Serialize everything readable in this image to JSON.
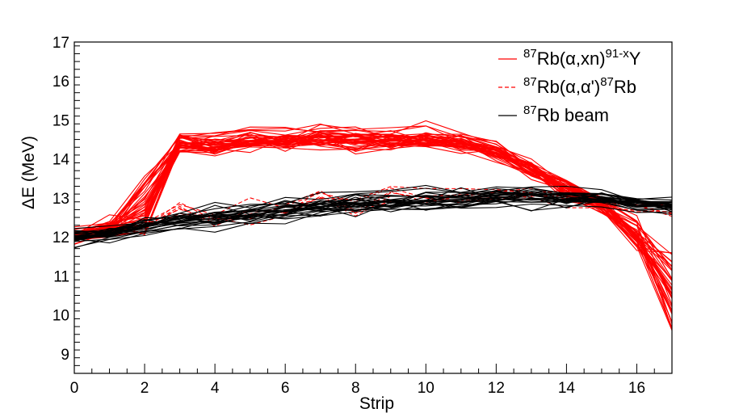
{
  "chart_data": {
    "type": "line",
    "title": "",
    "xlabel": "Strip",
    "ylabel": "ΔE (MeV)",
    "xlim": [
      0,
      17
    ],
    "ylim": [
      8.5,
      17
    ],
    "x_ticks": [
      0,
      2,
      4,
      6,
      8,
      10,
      12,
      14,
      16
    ],
    "y_ticks": [
      9,
      10,
      11,
      12,
      13,
      14,
      15,
      16,
      17
    ],
    "x": [
      0,
      1,
      2,
      3,
      4,
      5,
      6,
      7,
      8,
      9,
      10,
      11,
      12,
      13,
      14,
      15,
      16,
      17
    ],
    "series": [
      {
        "name": "87Rb(α,xn)91-xY",
        "color": "#ff0000",
        "style": "solid",
        "count": 40,
        "values": [
          12.0,
          12.2,
          12.5,
          14.4,
          14.3,
          14.45,
          14.45,
          14.5,
          14.45,
          14.5,
          14.5,
          14.4,
          14.2,
          13.7,
          13.2,
          12.8,
          12.0,
          10.6
        ],
        "spread": [
          0.2,
          0.25,
          0.25,
          0.3,
          0.3,
          0.35,
          0.35,
          0.35,
          0.35,
          0.35,
          0.35,
          0.3,
          0.3,
          0.3,
          0.3,
          0.3,
          0.45,
          0.7
        ]
      },
      {
        "name": "87Rb(α,α')87Rb",
        "color": "#ff0000",
        "style": "dashed",
        "count": 6,
        "values": [
          12.0,
          12.1,
          12.2,
          12.7,
          12.3,
          12.5,
          12.6,
          12.9,
          12.6,
          13.1,
          13.0,
          12.9,
          13.0,
          13.0,
          12.9,
          12.8,
          12.7,
          12.6
        ],
        "spread": [
          0.15,
          0.2,
          0.2,
          0.35,
          0.3,
          0.35,
          0.35,
          0.35,
          0.4,
          0.35,
          0.35,
          0.3,
          0.3,
          0.3,
          0.25,
          0.25,
          0.2,
          0.2
        ]
      },
      {
        "name": "87Rb beam",
        "color": "#000000",
        "style": "solid",
        "count": 28,
        "values": [
          12.0,
          12.1,
          12.3,
          12.4,
          12.5,
          12.6,
          12.7,
          12.8,
          12.85,
          12.9,
          12.95,
          13.0,
          13.05,
          13.1,
          13.0,
          13.0,
          12.85,
          12.8
        ],
        "spread": [
          0.25,
          0.25,
          0.25,
          0.3,
          0.3,
          0.3,
          0.3,
          0.3,
          0.3,
          0.3,
          0.3,
          0.3,
          0.3,
          0.3,
          0.25,
          0.25,
          0.2,
          0.2
        ]
      }
    ],
    "legend": {
      "position": "top-right",
      "entries": [
        {
          "prefix_sup": "87",
          "main": "Rb(α,xn)",
          "sup": "91-x",
          "suffix": "Y",
          "color": "#ff0000",
          "style": "solid"
        },
        {
          "prefix_sup": "87",
          "main": "Rb(α,α')",
          "sup": "87",
          "suffix": "Rb",
          "color": "#ff0000",
          "style": "dashed"
        },
        {
          "prefix_sup": "87",
          "main": "Rb beam",
          "sup": "",
          "suffix": "",
          "color": "#000000",
          "style": "solid"
        }
      ]
    }
  }
}
